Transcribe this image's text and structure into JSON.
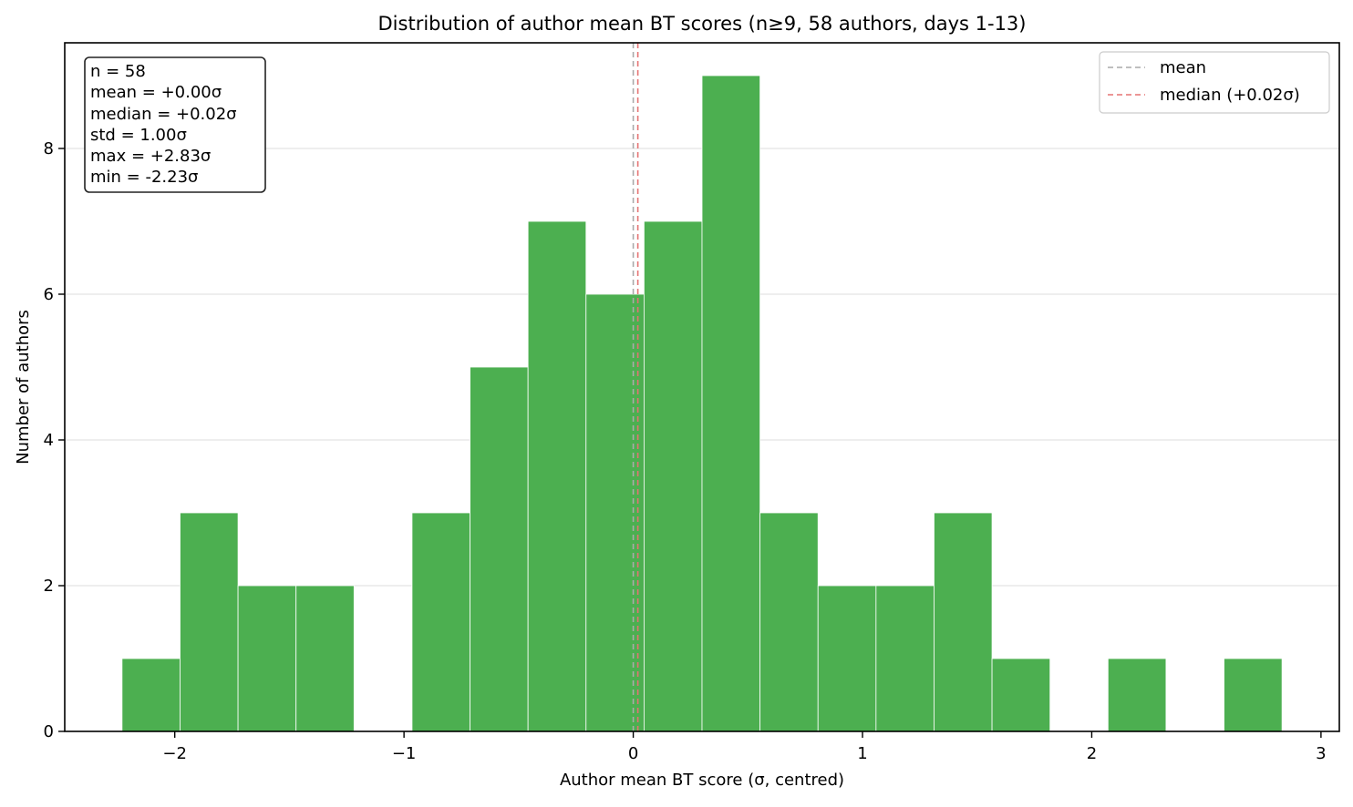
{
  "chart_data": {
    "type": "bar",
    "histogram": true,
    "title": "Distribution of author mean BT scores (n≥9, 58 authors, days 1-13)",
    "xlabel": "Author mean BT score (σ, centred)",
    "ylabel": "Number of authors",
    "xlim": [
      -2.48,
      3.08
    ],
    "ylim": [
      0,
      9.45
    ],
    "x_ticks": [
      -2,
      -1,
      0,
      1,
      2,
      3
    ],
    "x_tick_labels": [
      "−2",
      "−1",
      "0",
      "1",
      "2",
      "3"
    ],
    "y_ticks": [
      0,
      2,
      4,
      6,
      8
    ],
    "y_tick_labels": [
      "0",
      "2",
      "4",
      "6",
      "8"
    ],
    "grid": "y",
    "bins": [
      {
        "x0": -2.23,
        "x1": -1.977,
        "count": 1
      },
      {
        "x0": -1.977,
        "x1": -1.724,
        "count": 3
      },
      {
        "x0": -1.724,
        "x1": -1.471,
        "count": 2
      },
      {
        "x0": -1.471,
        "x1": -1.218,
        "count": 2
      },
      {
        "x0": -1.218,
        "x1": -0.965,
        "count": 0
      },
      {
        "x0": -0.965,
        "x1": -0.712,
        "count": 3
      },
      {
        "x0": -0.712,
        "x1": -0.459,
        "count": 5
      },
      {
        "x0": -0.459,
        "x1": -0.206,
        "count": 7
      },
      {
        "x0": -0.206,
        "x1": 0.047,
        "count": 6
      },
      {
        "x0": 0.047,
        "x1": 0.3,
        "count": 7
      },
      {
        "x0": 0.3,
        "x1": 0.553,
        "count": 9
      },
      {
        "x0": 0.553,
        "x1": 0.806,
        "count": 3
      },
      {
        "x0": 0.806,
        "x1": 1.059,
        "count": 2
      },
      {
        "x0": 1.059,
        "x1": 1.312,
        "count": 2
      },
      {
        "x0": 1.312,
        "x1": 1.565,
        "count": 3
      },
      {
        "x0": 1.565,
        "x1": 1.818,
        "count": 1
      },
      {
        "x0": 1.818,
        "x1": 2.071,
        "count": 0
      },
      {
        "x0": 2.071,
        "x1": 2.324,
        "count": 1
      },
      {
        "x0": 2.324,
        "x1": 2.577,
        "count": 0
      },
      {
        "x0": 2.577,
        "x1": 2.83,
        "count": 1
      }
    ],
    "bar_color": "#4caf50",
    "lines": [
      {
        "name": "mean",
        "x": 0.0,
        "color": "#aaaaaa",
        "style": "dashed"
      },
      {
        "name": "median (+0.02σ)",
        "x": 0.02,
        "color": "#e57373",
        "style": "dashed"
      }
    ],
    "legend_position": "top-right",
    "stats_box": {
      "position": "top-left",
      "lines": [
        "n = 58",
        "mean = +0.00σ",
        "median = +0.02σ",
        "std = 1.00σ",
        "max = +2.83σ",
        "min = -2.23σ"
      ]
    }
  }
}
